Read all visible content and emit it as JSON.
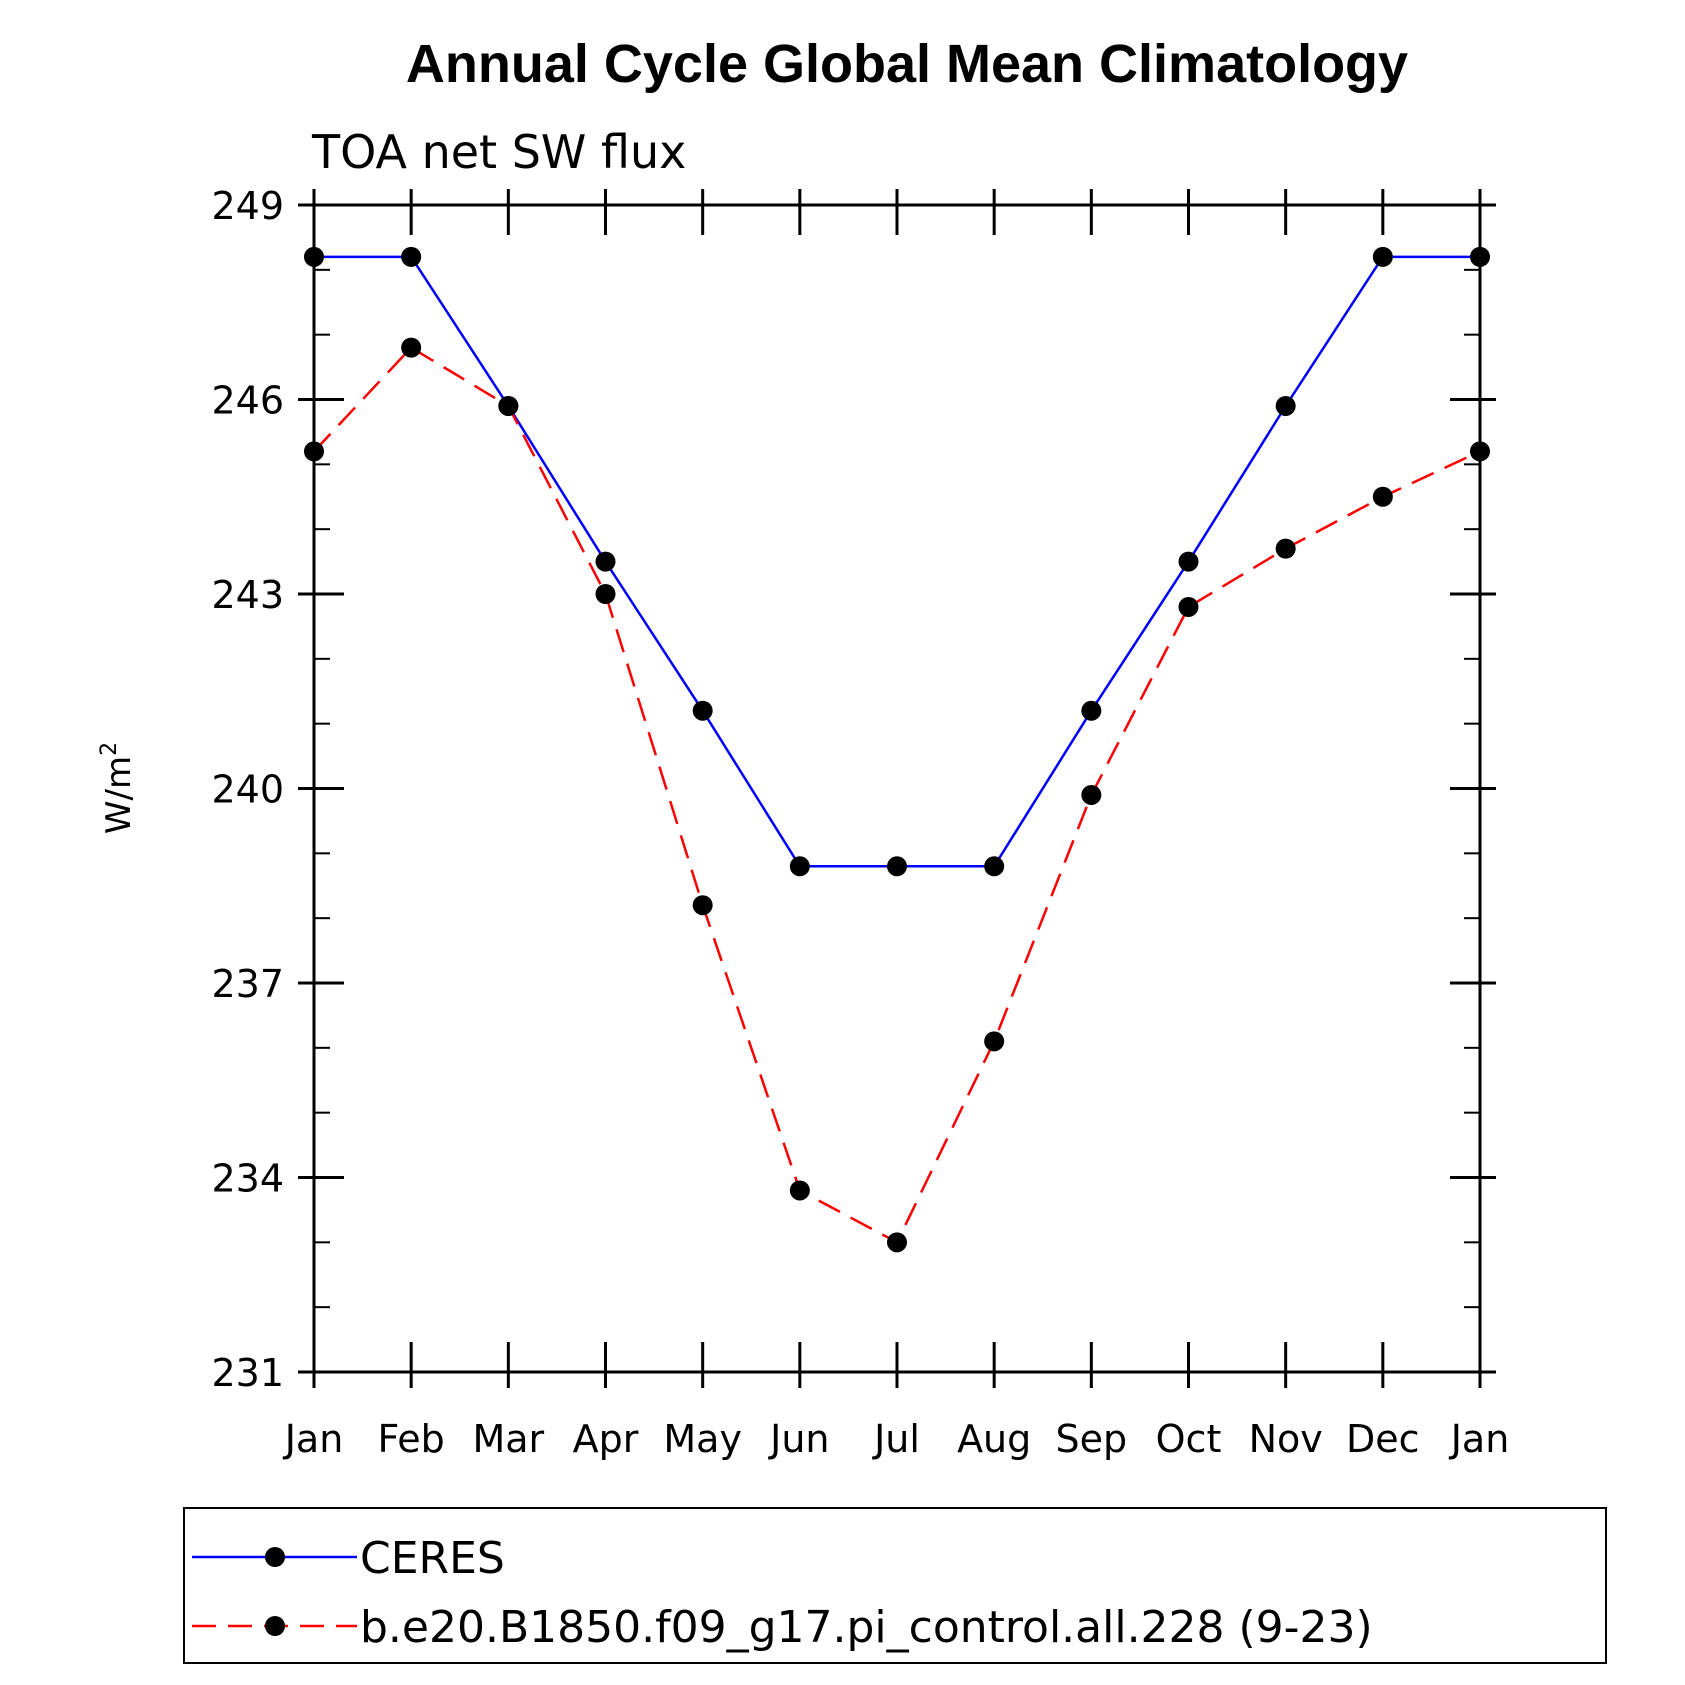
{
  "chart_data": {
    "type": "line",
    "title": "Annual Cycle Global Mean Climatology",
    "subtitle": "TOA net SW flux",
    "ylabel": "W/m",
    "ylabel_sup": "2",
    "xlabel": "",
    "ylim": [
      231,
      249
    ],
    "yticks": [
      231,
      234,
      237,
      240,
      243,
      246,
      249
    ],
    "categories": [
      "Jan",
      "Feb",
      "Mar",
      "Apr",
      "May",
      "Jun",
      "Jul",
      "Aug",
      "Sep",
      "Oct",
      "Nov",
      "Dec",
      "Jan"
    ],
    "series": [
      {
        "name": "CERES",
        "color": "#0000ff",
        "style": "solid",
        "values": [
          248.2,
          248.2,
          245.9,
          243.5,
          241.2,
          238.8,
          238.8,
          238.8,
          241.2,
          243.5,
          245.9,
          248.2,
          248.2
        ]
      },
      {
        "name": "b.e20.B1850.f09_g17.pi_control.all.228 (9-23)",
        "color": "#ff0000",
        "style": "dashed",
        "values": [
          245.2,
          246.8,
          245.9,
          243.0,
          238.2,
          233.8,
          233.0,
          236.1,
          239.9,
          242.8,
          243.7,
          244.5,
          245.2
        ]
      }
    ],
    "legend_position": "bottom",
    "grid": false
  }
}
